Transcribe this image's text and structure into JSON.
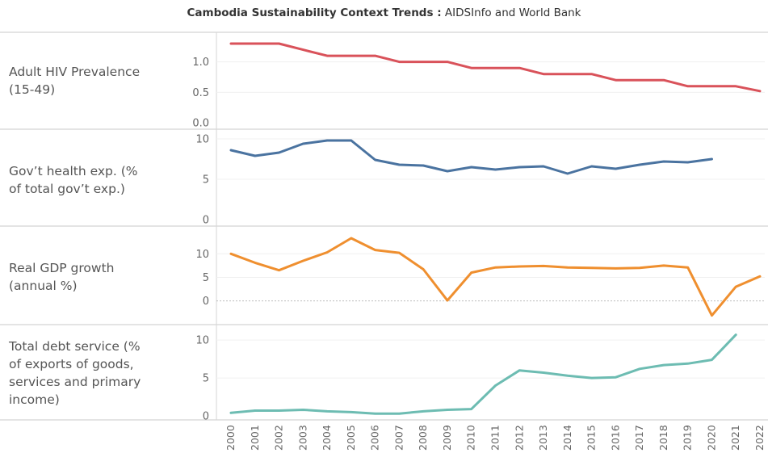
{
  "title": {
    "bold": "Cambodia Sustainability Context Trends :",
    "rest": " AIDSInfo and World Bank"
  },
  "chart_data": [
    {
      "type": "line",
      "row_label": [
        "Adult HIV Prevalence",
        "(15-49)"
      ],
      "x": [
        2000,
        2001,
        2002,
        2003,
        2004,
        2005,
        2006,
        2007,
        2008,
        2009,
        2010,
        2011,
        2012,
        2013,
        2014,
        2015,
        2016,
        2017,
        2018,
        2019,
        2020,
        2021,
        2022
      ],
      "values": [
        1.3,
        1.3,
        1.3,
        1.2,
        1.1,
        1.1,
        1.1,
        1.0,
        1.0,
        1.0,
        0.9,
        0.9,
        0.9,
        0.8,
        0.8,
        0.8,
        0.7,
        0.7,
        0.7,
        0.6,
        0.6,
        0.6,
        0.52
      ],
      "yticks": [
        0.0,
        0.5,
        1.0
      ],
      "ytick_labels": [
        "0.0",
        "0.5",
        "1.0"
      ],
      "ylim": [
        0,
        1.38
      ],
      "color": "#d9525a"
    },
    {
      "type": "line",
      "row_label": [
        "Gov’t health exp. (%",
        "of total gov’t exp.)"
      ],
      "x": [
        2000,
        2001,
        2002,
        2003,
        2004,
        2005,
        2006,
        2007,
        2008,
        2009,
        2010,
        2011,
        2012,
        2013,
        2014,
        2015,
        2016,
        2017,
        2018,
        2019,
        2020
      ],
      "values": [
        8.6,
        7.9,
        8.3,
        9.4,
        9.8,
        9.8,
        7.4,
        6.8,
        6.7,
        6.0,
        6.5,
        6.2,
        6.5,
        6.6,
        5.7,
        6.6,
        6.3,
        6.8,
        7.2,
        7.1,
        7.5
      ],
      "yticks": [
        0,
        5,
        10
      ],
      "ytick_labels": [
        "0",
        "5",
        "10"
      ],
      "ylim": [
        0,
        10.4
      ],
      "color": "#4a73a0"
    },
    {
      "type": "line",
      "row_label": [
        "Real GDP growth",
        "(annual %)"
      ],
      "x": [
        2000,
        2001,
        2002,
        2003,
        2004,
        2005,
        2006,
        2007,
        2008,
        2009,
        2010,
        2011,
        2012,
        2013,
        2014,
        2015,
        2016,
        2017,
        2018,
        2019,
        2020,
        2021,
        2022
      ],
      "values": [
        10.0,
        8.1,
        6.5,
        8.5,
        10.3,
        13.3,
        10.8,
        10.2,
        6.7,
        0.1,
        6.0,
        7.1,
        7.3,
        7.4,
        7.1,
        7.0,
        6.9,
        7.0,
        7.5,
        7.1,
        -3.1,
        3.0,
        5.2
      ],
      "yticks": [
        0,
        5,
        10
      ],
      "ytick_labels": [
        "0",
        "5",
        "10"
      ],
      "ylim": [
        -4,
        14.5
      ],
      "zero_line": true,
      "color": "#ef8f2f"
    },
    {
      "type": "line",
      "row_label": [
        "Total debt service (%",
        "of exports of goods,",
        "services and primary",
        "income)"
      ],
      "x": [
        2000,
        2001,
        2002,
        2003,
        2004,
        2005,
        2006,
        2007,
        2008,
        2009,
        2010,
        2011,
        2012,
        2013,
        2014,
        2015,
        2016,
        2017,
        2018,
        2019,
        2020,
        2021
      ],
      "values": [
        0.4,
        0.7,
        0.7,
        0.8,
        0.6,
        0.5,
        0.3,
        0.3,
        0.6,
        0.8,
        0.9,
        4.0,
        6.0,
        5.7,
        5.3,
        5.0,
        5.1,
        6.2,
        6.7,
        6.9,
        7.4,
        10.7
      ],
      "yticks": [
        0,
        5,
        10
      ],
      "ytick_labels": [
        "0",
        "5",
        "10"
      ],
      "ylim": [
        -0.1,
        11.4
      ],
      "color": "#6dbcb2"
    }
  ],
  "x_axis": {
    "ticks": [
      "2000",
      "2001",
      "2002",
      "2003",
      "2004",
      "2005",
      "2006",
      "2007",
      "2008",
      "2009",
      "2010",
      "2011",
      "2012",
      "2013",
      "2014",
      "2015",
      "2016",
      "2017",
      "2018",
      "2019",
      "2020",
      "2021",
      "2022"
    ]
  }
}
